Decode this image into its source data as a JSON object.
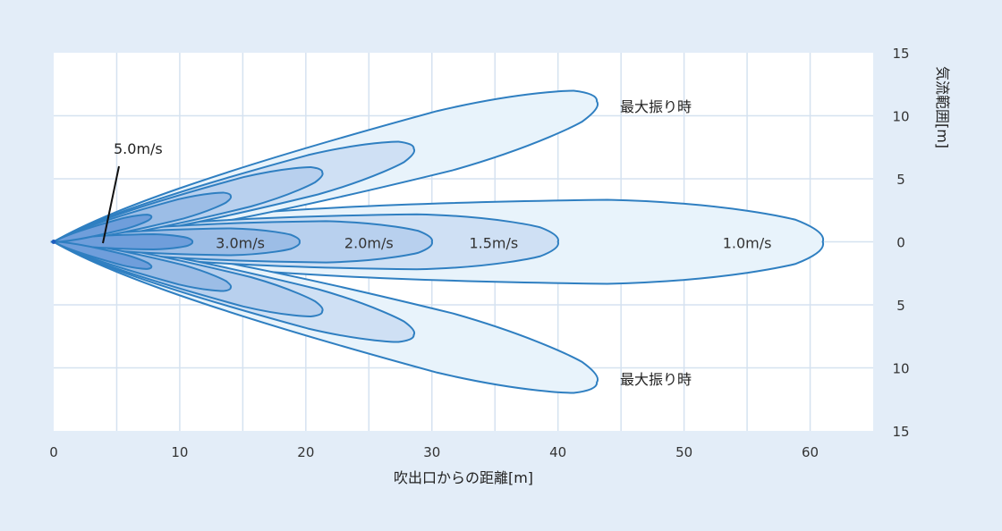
{
  "chart_data": {
    "type": "area",
    "xlabel": "吹出口からの距離[m]",
    "ylabel": "気流範囲[m]",
    "xlim": [
      0,
      65
    ],
    "ylim": [
      -15,
      15
    ],
    "x_ticks": [
      "0",
      "10",
      "20",
      "30",
      "40",
      "50",
      "60"
    ],
    "y_ticks": [
      "15",
      "10",
      "5",
      "0",
      "5",
      "10",
      "15"
    ],
    "grid": true,
    "grid_step_x": 5,
    "grid_step_y": 5,
    "colors": {
      "background": "#e3edf8",
      "plot_bg": "#ffffff",
      "grid": "#d5e2f0",
      "outline": "#2f7fc1",
      "fill_1_0": "#e8f3fb",
      "fill_1_5": "#cfe0f4",
      "fill_2_0": "#b8d0ee",
      "fill_3_0": "#9cbde6",
      "fill_5_0": "#6f9edb",
      "origin": "#1f5fbf"
    },
    "series": [
      {
        "name": "1.0m/s",
        "center": [
          {
            "angle_deg": 0,
            "reach": 61
          },
          {
            "angle_deg": 14.5,
            "reach": 44.5
          },
          {
            "angle_deg": -14.5,
            "reach": 44.5
          }
        ]
      },
      {
        "name": "1.5m/s",
        "center": [
          {
            "angle_deg": 0,
            "reach": 40
          },
          {
            "angle_deg": 14.5,
            "reach": 29.5
          },
          {
            "angle_deg": -14.5,
            "reach": 29.5
          }
        ]
      },
      {
        "name": "2.0m/s",
        "center": [
          {
            "angle_deg": 0,
            "reach": 30
          },
          {
            "angle_deg": 14.5,
            "reach": 22
          },
          {
            "angle_deg": -14.5,
            "reach": 22
          }
        ]
      },
      {
        "name": "3.0m/s",
        "center": [
          {
            "angle_deg": 0,
            "reach": 19.5
          },
          {
            "angle_deg": 14.5,
            "reach": 14.5
          },
          {
            "angle_deg": -14.5,
            "reach": 14.5
          }
        ]
      },
      {
        "name": "5.0m/s",
        "center": [
          {
            "angle_deg": 0,
            "reach": 11
          },
          {
            "angle_deg": 14.5,
            "reach": 8
          },
          {
            "angle_deg": -14.5,
            "reach": 8
          }
        ]
      }
    ],
    "annotations": {
      "max_swing_top": "最大振り時",
      "max_swing_bottom": "最大振り時",
      "speed_5": "5.0m/s",
      "speed_3": "3.0m/s",
      "speed_2": "2.0m/s",
      "speed_1_5": "1.5m/s",
      "speed_1": "1.0m/s"
    }
  }
}
